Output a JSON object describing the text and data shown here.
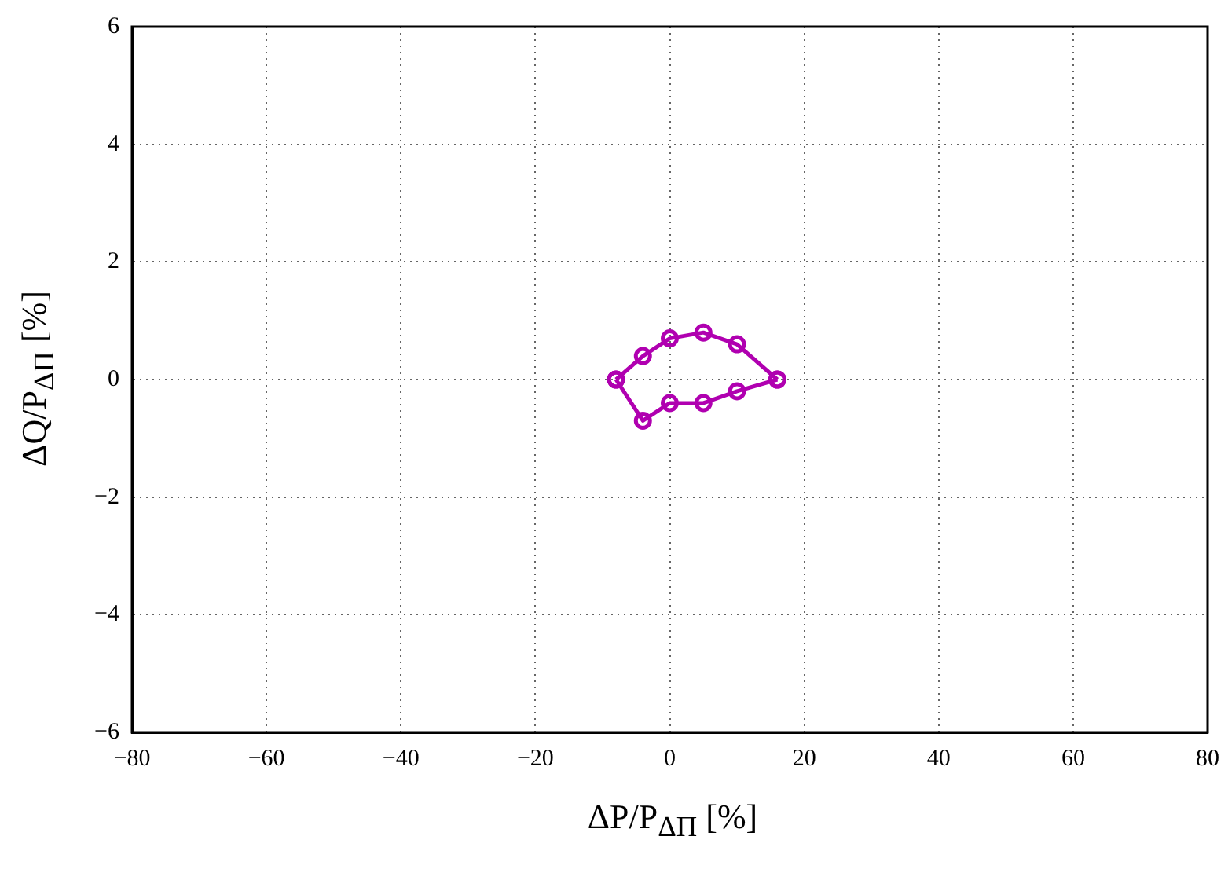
{
  "chart_data": {
    "type": "line",
    "xlabel": "ΔP/P$_{ΔΠ}$ [%]",
    "ylabel": "ΔQ/P$_{ΔΠ}$ [%]",
    "x": [
      -8,
      -4,
      0,
      5,
      10,
      16
    ],
    "series": [
      {
        "color": "#b000b0",
        "values": [
          0,
          0.4,
          0.7,
          0.8,
          0.6,
          0
        ]
      },
      {
        "color": "#b000b0",
        "values": [
          0,
          -0.7,
          -0.4,
          -0.4,
          -0.2,
          0
        ]
      }
    ],
    "xlim": [
      -80,
      80
    ],
    "xticks": [
      -80,
      -60,
      -40,
      -20,
      0,
      20,
      40,
      60,
      80
    ],
    "ylim": [
      -6,
      6
    ],
    "yticks": [
      -6,
      -4,
      -2,
      0,
      2,
      4,
      6
    ],
    "grid": true,
    "legend": false,
    "marker": "circle",
    "line_style": "solid"
  }
}
